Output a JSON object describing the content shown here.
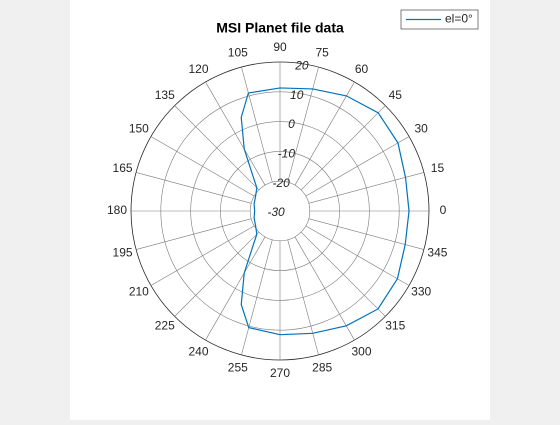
{
  "chart_data": {
    "type": "polar",
    "title": "MSI Planet file data",
    "theta": [
      0,
      15,
      30,
      45,
      60,
      75,
      90,
      105,
      112.5,
      120,
      127.5,
      135,
      150,
      165,
      180,
      195,
      210,
      225,
      232.5,
      240,
      247.5,
      255,
      270,
      285,
      300,
      315,
      330,
      345
    ],
    "series": [
      {
        "name": "el=0°",
        "color": "#0072bd",
        "values": [
          13.3,
          13.6,
          15.7,
          16.6,
          14.6,
          12.4,
          11.3,
          11,
          4,
          -6,
          -15,
          -19,
          -20.5,
          -21,
          -21.5,
          -21,
          -20.5,
          -19,
          -15,
          -6,
          4,
          10.5,
          11.5,
          12.5,
          14.5,
          16.5,
          15.5,
          13.5
        ]
      }
    ],
    "rlim": [
      -30,
      20
    ],
    "rticks": [
      -30,
      -20,
      -10,
      0,
      10,
      20
    ],
    "thetaticks": [
      0,
      15,
      30,
      45,
      60,
      75,
      90,
      105,
      120,
      135,
      150,
      165,
      180,
      195,
      210,
      225,
      240,
      255,
      270,
      285,
      300,
      315,
      330,
      345
    ],
    "legend": "upper right"
  }
}
